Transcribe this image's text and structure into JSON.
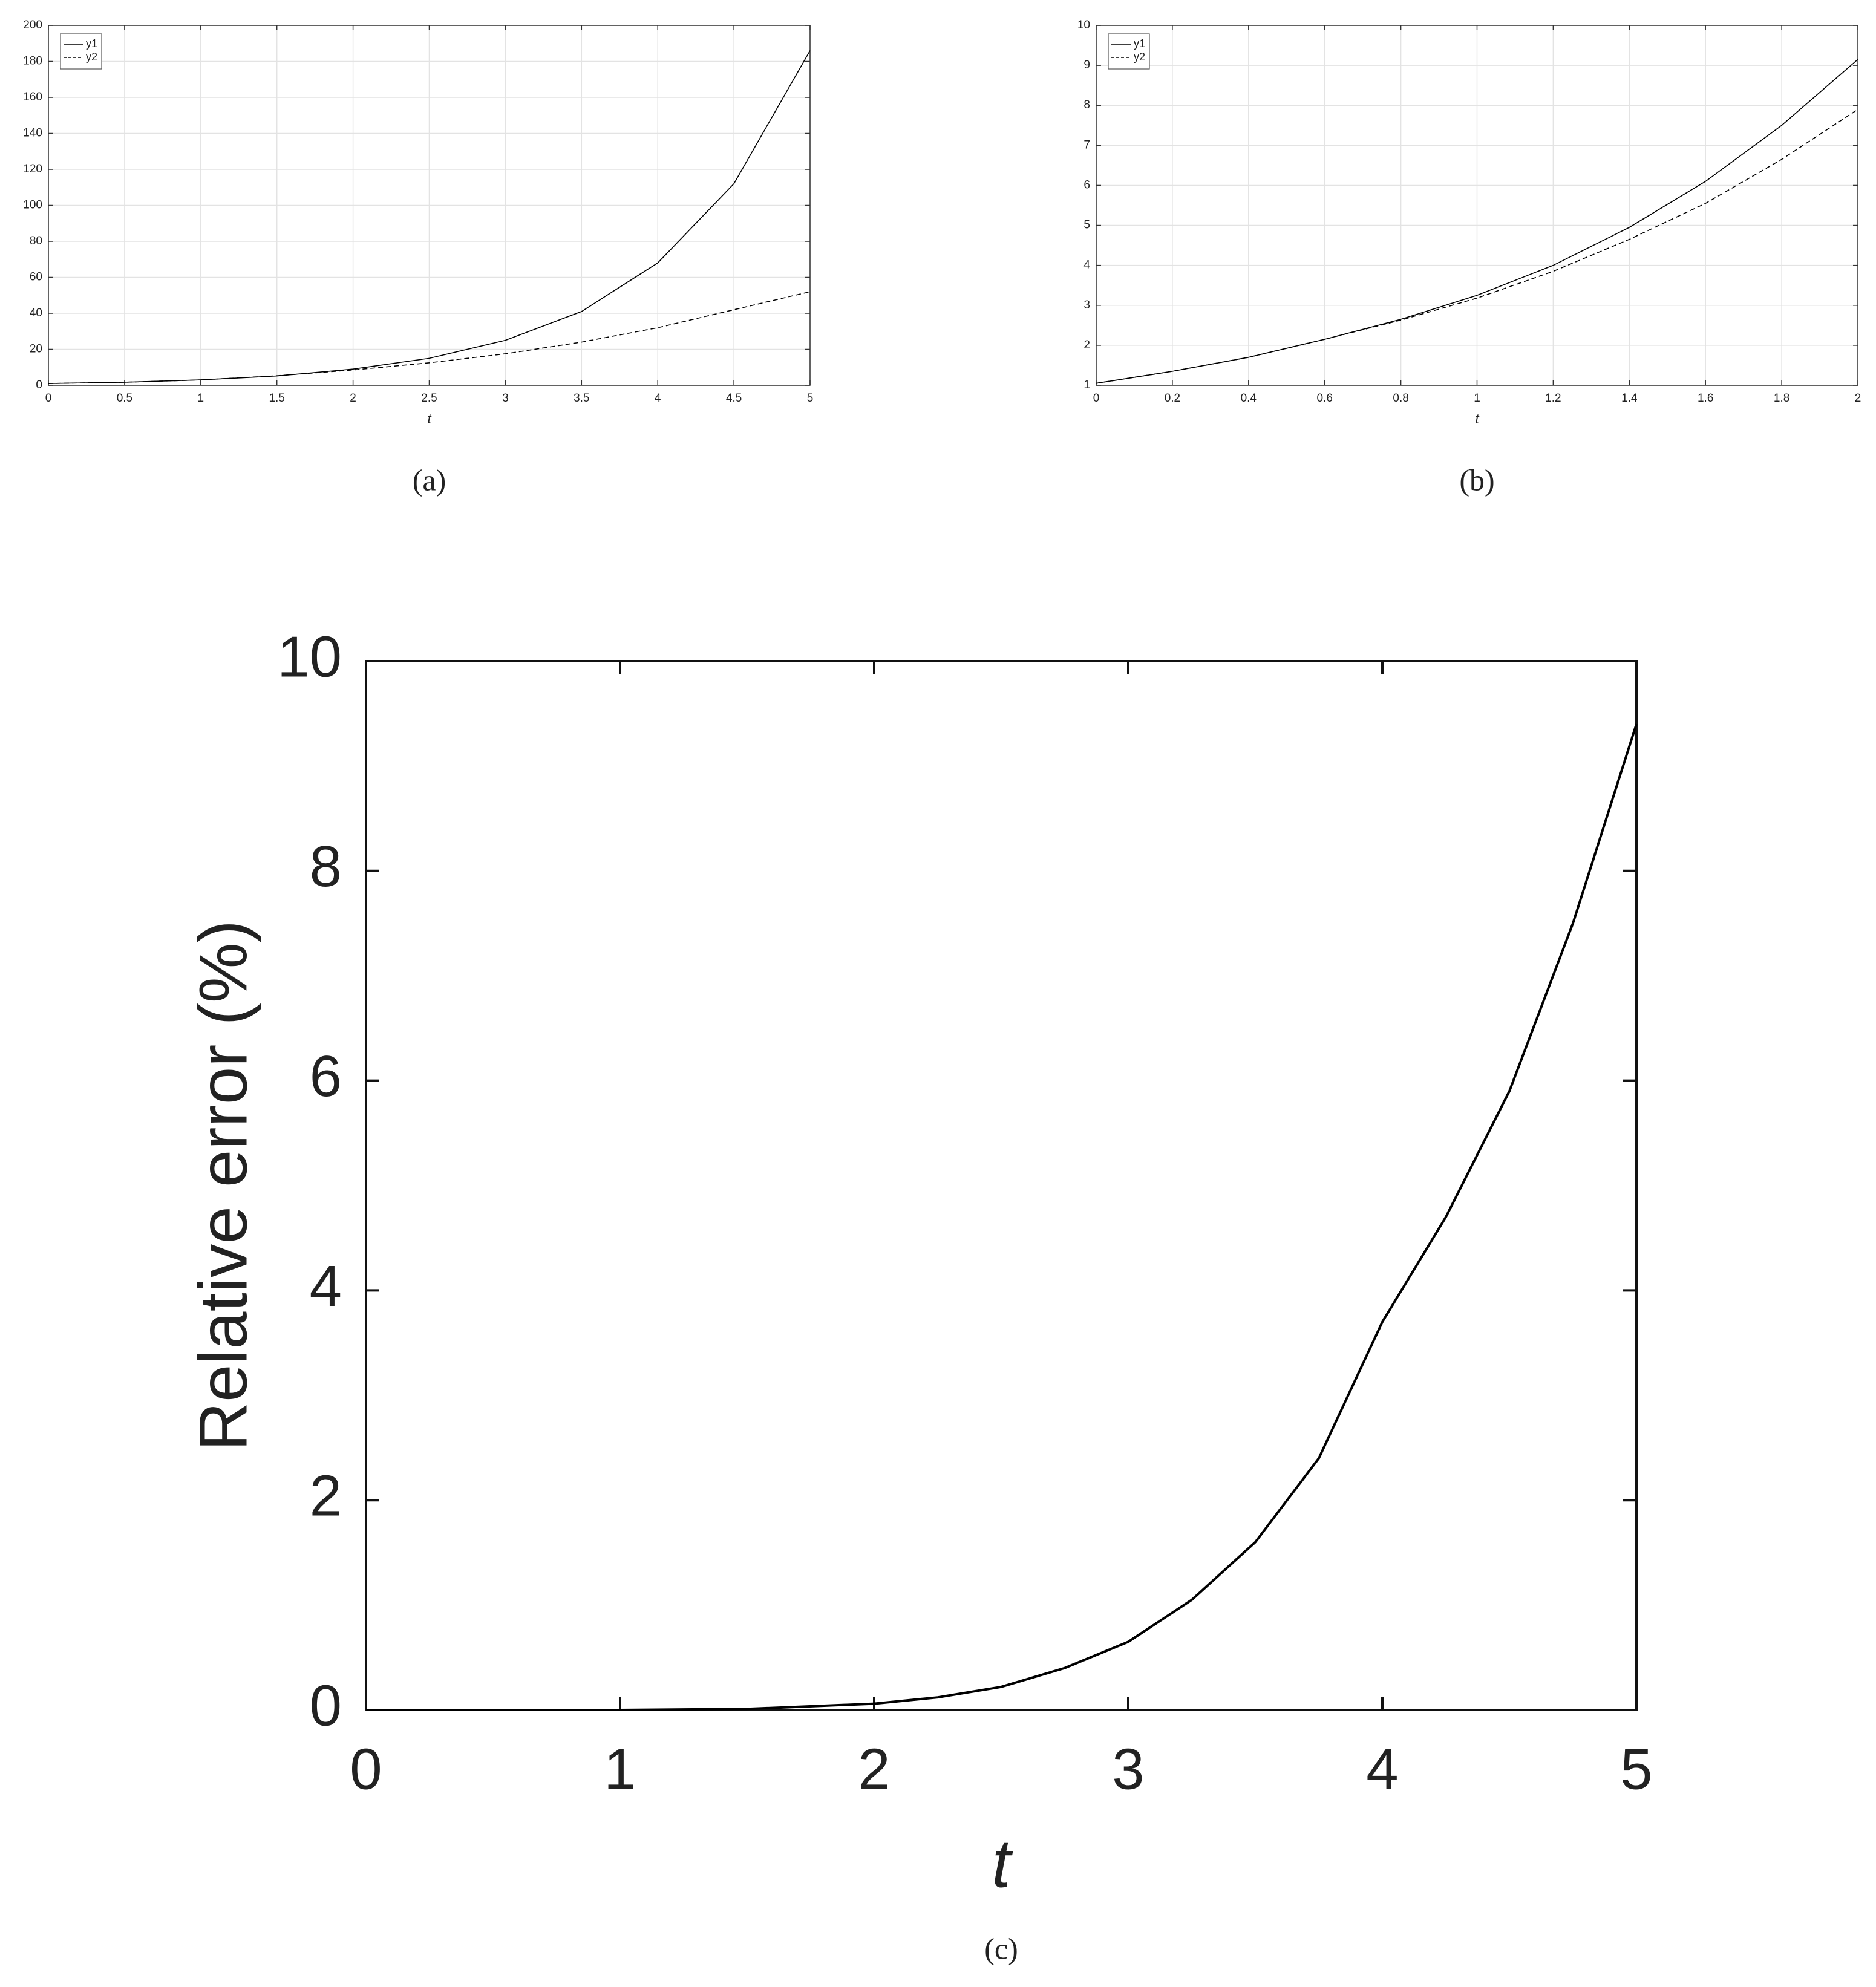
{
  "chart_data": [
    {
      "type": "line",
      "caption": "(a)",
      "x_label": "t",
      "x": [
        0,
        0.5,
        1,
        1.5,
        2,
        2.5,
        3,
        3.5,
        4,
        4.5,
        5
      ],
      "series": [
        {
          "name": "y1",
          "color": "#000000",
          "style": "solid",
          "values": [
            1,
            1.7,
            3,
            5.2,
            9,
            15,
            25,
            41,
            68,
            112,
            186
          ]
        },
        {
          "name": "y2",
          "color": "#000000",
          "style": "dashed",
          "values": [
            1,
            1.7,
            3,
            5.3,
            8.5,
            12.5,
            17.5,
            24,
            32,
            42,
            52
          ]
        }
      ],
      "xlim": [
        0,
        5
      ],
      "xticks": [
        0,
        0.5,
        1,
        1.5,
        2,
        2.5,
        3,
        3.5,
        4,
        4.5,
        5
      ],
      "ylim": [
        0,
        200
      ],
      "yticks": [
        0,
        20,
        40,
        60,
        80,
        100,
        120,
        140,
        160,
        180,
        200
      ],
      "grid": true,
      "legend": "upper-left"
    },
    {
      "type": "line",
      "caption": "(b)",
      "x_label": "t",
      "x": [
        0,
        0.2,
        0.4,
        0.6,
        0.8,
        1,
        1.2,
        1.4,
        1.6,
        1.8,
        2
      ],
      "series": [
        {
          "name": "y1",
          "color": "#000000",
          "style": "solid",
          "values": [
            1.05,
            1.35,
            1.7,
            2.15,
            2.65,
            3.25,
            4.0,
            4.95,
            6.1,
            7.5,
            9.15
          ]
        },
        {
          "name": "y2",
          "color": "#000000",
          "style": "dashed",
          "values": [
            1.05,
            1.35,
            1.7,
            2.15,
            2.63,
            3.18,
            3.85,
            4.65,
            5.55,
            6.65,
            7.9
          ]
        }
      ],
      "xlim": [
        0,
        2
      ],
      "xticks": [
        0,
        0.2,
        0.4,
        0.6,
        0.8,
        1,
        1.2,
        1.4,
        1.6,
        1.8,
        2
      ],
      "ylim": [
        1,
        10
      ],
      "yticks": [
        1,
        2,
        3,
        4,
        5,
        6,
        7,
        8,
        9,
        10
      ],
      "grid": true,
      "legend": "upper-left"
    },
    {
      "type": "line",
      "caption": "(c)",
      "x_label": "t",
      "y_label": "Relative error (%)",
      "x": [
        0,
        0.5,
        1,
        1.5,
        2,
        2.25,
        2.5,
        2.75,
        3,
        3.25,
        3.5,
        3.75,
        4,
        4.25,
        4.5,
        4.75,
        5
      ],
      "series": [
        {
          "color": "#000000",
          "style": "solid",
          "values": [
            0,
            0,
            0,
            0.01,
            0.06,
            0.12,
            0.22,
            0.4,
            0.65,
            1.05,
            1.6,
            2.4,
            3.7,
            4.7,
            5.9,
            7.5,
            9.4
          ]
        }
      ],
      "xlim": [
        0,
        5
      ],
      "xticks": [
        0,
        1,
        2,
        3,
        4,
        5
      ],
      "ylim": [
        0,
        10
      ],
      "yticks": [
        0,
        2,
        4,
        6,
        8,
        10
      ],
      "grid": false
    }
  ]
}
